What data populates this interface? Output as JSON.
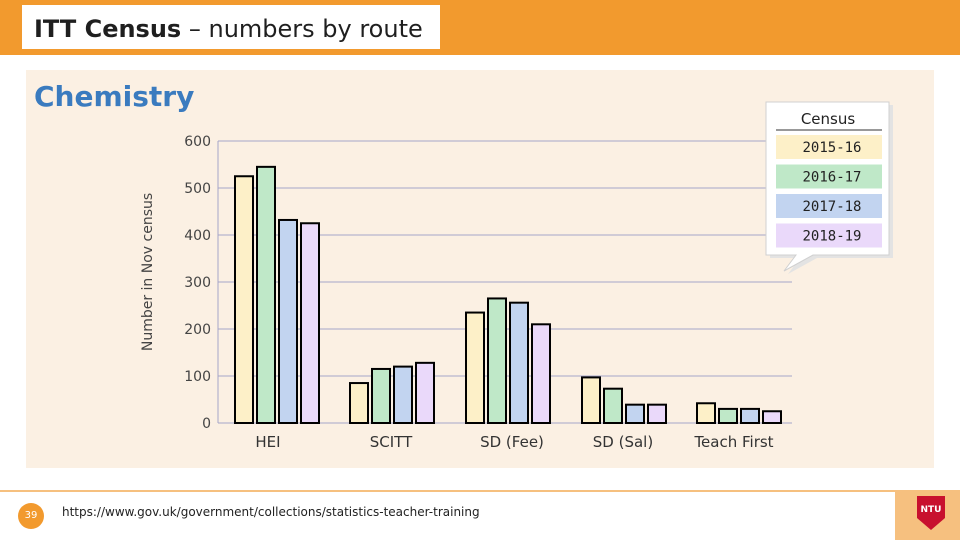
{
  "header": {
    "title_bold": "ITT Census",
    "title_rest": " – numbers by route"
  },
  "subject": "Chemistry",
  "chart_data": {
    "type": "bar",
    "ylabel": "Number in Nov census",
    "ylim": [
      0,
      600
    ],
    "yticks": [
      0,
      100,
      200,
      300,
      400,
      500,
      600
    ],
    "categories": [
      "HEI",
      "SCITT",
      "SD (Fee)",
      "SD (Sal)",
      "Teach First"
    ],
    "legend_title": "Census",
    "series": [
      {
        "name": "2015-16",
        "color": "#fdf0c8",
        "values": [
          525,
          85,
          235,
          97,
          42
        ]
      },
      {
        "name": "2016-17",
        "color": "#bfe8c8",
        "values": [
          545,
          115,
          265,
          73,
          30
        ]
      },
      {
        "name": "2017-18",
        "color": "#c2d4f0",
        "values": [
          432,
          120,
          256,
          39,
          30
        ]
      },
      {
        "name": "2018-19",
        "color": "#ead9fa",
        "values": [
          425,
          128,
          210,
          39,
          25
        ]
      }
    ]
  },
  "footer": {
    "page_number": "39",
    "source_url": "https://www.gov.uk/government/collections/statistics-teacher-training",
    "logo_text": "NTU",
    "accent": "#f29a2e",
    "logo_color": "#c8102e"
  }
}
